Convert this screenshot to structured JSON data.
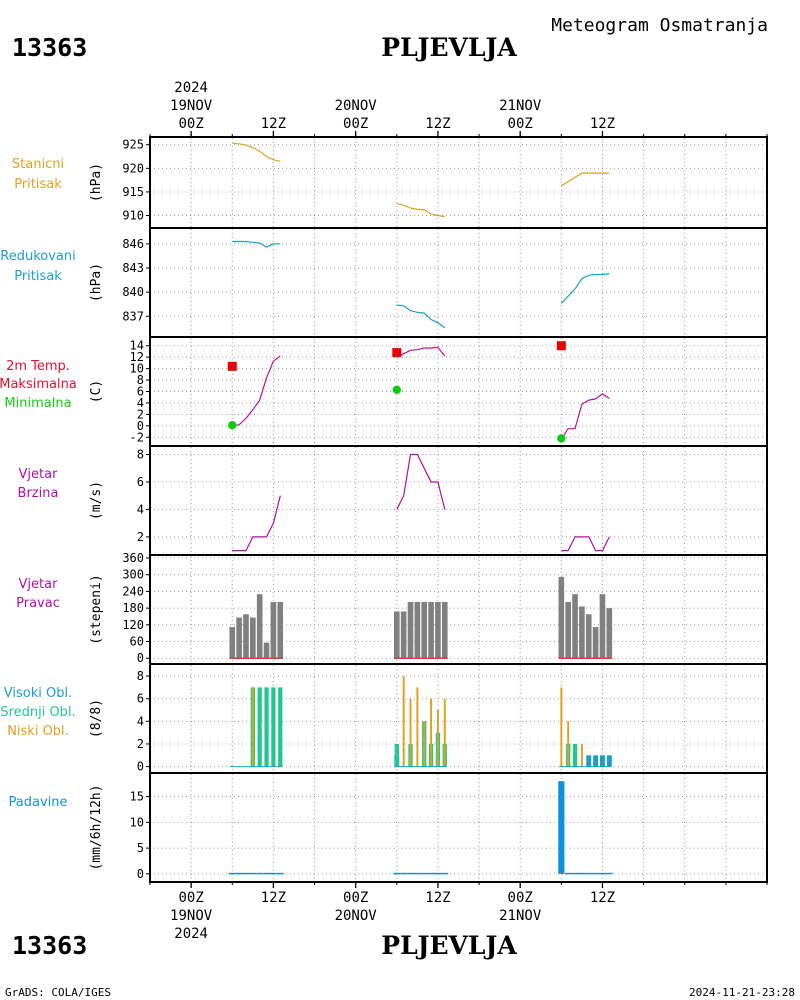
{
  "header": {
    "station_id": "13363",
    "station_name": "PLJEVLJA",
    "meteogram_title": "Meteogram Osmatranja"
  },
  "footer": {
    "left_text": "GrADS: COLA/IGES",
    "timestamp": "2024-11-21-23:28"
  },
  "time_axis": {
    "unit": "hours since 2024-11-19 00Z",
    "xlim": [
      -6,
      84
    ],
    "year_label": "2024",
    "top_ticks": [
      {
        "hour": 0,
        "label": "00Z"
      },
      {
        "hour": 12,
        "label": "12Z"
      },
      {
        "hour": 24,
        "label": "00Z"
      },
      {
        "hour": 36,
        "label": "12Z"
      },
      {
        "hour": 48,
        "label": "00Z"
      },
      {
        "hour": 60,
        "label": "12Z"
      }
    ],
    "date_labels": [
      {
        "hour": 0,
        "label": "19NOV"
      },
      {
        "hour": 24,
        "label": "20NOV"
      },
      {
        "hour": 48,
        "label": "21NOV"
      }
    ]
  },
  "colors": {
    "pressure": "#e0a020",
    "reduced_pressure": "#1aa0c8",
    "temp_label": "#e01030",
    "max_marker": "#e80000",
    "min_marker": "#10cc10",
    "temp_line": "#c01098",
    "wind": "#aa10aa",
    "wind_bar": "#808080",
    "wind_baseline": "#d04040",
    "cloud_high": "#1aa0c8",
    "cloud_mid": "#20c890",
    "cloud_low": "#e0a020",
    "precip": "#1090e0"
  },
  "chart_data": [
    {
      "panel": "station_pressure",
      "type": "line",
      "label_lines": [
        "Stanicni",
        "Pritisak"
      ],
      "ylabel": "(hPa)",
      "ylim": [
        908,
        926
      ],
      "yticks": [
        910,
        915,
        920,
        925
      ],
      "series": [
        {
          "segments": [
            [
              [
                6,
                925.3
              ],
              [
                7,
                925.2
              ],
              [
                8,
                924.9
              ],
              [
                9,
                924.4
              ],
              [
                10,
                923.6
              ],
              [
                11,
                922.5
              ],
              [
                12,
                921.8
              ],
              [
                13,
                921.5
              ]
            ],
            [
              [
                30,
                912.5
              ],
              [
                31,
                912.2
              ],
              [
                32,
                911.6
              ],
              [
                33,
                911.3
              ],
              [
                34,
                911.2
              ],
              [
                35,
                910.3
              ],
              [
                36,
                910.0
              ],
              [
                37,
                909.8
              ]
            ],
            [
              [
                54,
                916.3
              ],
              [
                55,
                917.2
              ],
              [
                56,
                918.1
              ],
              [
                57,
                919.0
              ],
              [
                58,
                919.0
              ],
              [
                59,
                919.0
              ],
              [
                60,
                919.0
              ],
              [
                61,
                919.0
              ]
            ]
          ]
        }
      ]
    },
    {
      "panel": "reduced_pressure",
      "type": "line",
      "label_lines": [
        "Redukovani",
        "Pritisak"
      ],
      "ylabel": "(hPa)",
      "ylim": [
        834.8,
        847.6
      ],
      "yticks": [
        837,
        840,
        843,
        846
      ],
      "series": [
        {
          "segments": [
            [
              [
                6,
                846.3
              ],
              [
                7,
                846.3
              ],
              [
                8,
                846.3
              ],
              [
                9,
                846.2
              ],
              [
                10,
                846.1
              ],
              [
                11,
                845.6
              ],
              [
                12,
                846.0
              ],
              [
                13,
                846.0
              ]
            ],
            [
              [
                30,
                838.4
              ],
              [
                31,
                838.3
              ],
              [
                32,
                837.7
              ],
              [
                33,
                837.5
              ],
              [
                34,
                837.4
              ],
              [
                35,
                836.6
              ],
              [
                36,
                836.2
              ],
              [
                37,
                835.6
              ]
            ],
            [
              [
                54,
                838.6
              ],
              [
                55,
                839.5
              ],
              [
                56,
                840.4
              ],
              [
                57,
                841.7
              ],
              [
                58,
                842.1
              ],
              [
                59,
                842.2
              ],
              [
                60,
                842.2
              ],
              [
                61,
                842.3
              ]
            ]
          ]
        }
      ]
    },
    {
      "panel": "temperature_2m",
      "type": "line",
      "label_lines": [
        "2m Temp.",
        "Maksimalna",
        "Minimalna"
      ],
      "ylabel": "(C)",
      "ylim": [
        -3,
        15
      ],
      "yticks": [
        -2,
        0,
        2,
        4,
        6,
        8,
        10,
        12,
        14
      ],
      "series": [
        {
          "name": "2m Temp.",
          "segments": [
            [
              [
                6,
                0.0
              ],
              [
                7,
                0.2
              ],
              [
                8,
                1.3
              ],
              [
                9,
                2.8
              ],
              [
                10,
                4.5
              ],
              [
                11,
                8.4
              ],
              [
                12,
                11.3
              ],
              [
                13,
                12.2
              ]
            ],
            [
              [
                30,
                12.0
              ],
              [
                31,
                12.6
              ],
              [
                32,
                13.2
              ],
              [
                33,
                13.3
              ],
              [
                34,
                13.6
              ],
              [
                35,
                13.6
              ],
              [
                36,
                13.7
              ],
              [
                37,
                12.2
              ]
            ],
            [
              [
                54,
                -2.3
              ],
              [
                55,
                -0.5
              ],
              [
                56,
                -0.5
              ],
              [
                57,
                3.8
              ],
              [
                58,
                4.5
              ],
              [
                59,
                4.7
              ],
              [
                60,
                5.6
              ],
              [
                61,
                4.8
              ]
            ]
          ]
        },
        {
          "name": "Maksimalna",
          "points": [
            [
              6,
              10.4
            ],
            [
              30,
              12.8
            ],
            [
              54,
              14.0
            ]
          ]
        },
        {
          "name": "Minimalna",
          "points": [
            [
              6,
              0.1
            ],
            [
              30,
              6.3
            ],
            [
              54,
              -2.2
            ]
          ]
        }
      ]
    },
    {
      "panel": "wind_speed",
      "type": "line",
      "label_lines": [
        "Vjetar",
        "Brzina"
      ],
      "ylabel": "(m/s)",
      "ylim": [
        0.9,
        8.4
      ],
      "yticks": [
        2,
        4,
        6,
        8
      ],
      "series": [
        {
          "segments": [
            [
              [
                6,
                1.0
              ],
              [
                7,
                1.0
              ],
              [
                8,
                1.0
              ],
              [
                9,
                2.0
              ],
              [
                10,
                2.0
              ],
              [
                11,
                2.0
              ],
              [
                12,
                3.0
              ],
              [
                13,
                5.0
              ]
            ],
            [
              [
                30,
                4.0
              ],
              [
                31,
                5.0
              ],
              [
                32,
                8.0
              ],
              [
                33,
                8.0
              ],
              [
                34,
                7.0
              ],
              [
                35,
                6.0
              ],
              [
                36,
                6.0
              ],
              [
                37,
                4.0
              ]
            ],
            [
              [
                54,
                1.0
              ],
              [
                55,
                1.0
              ],
              [
                56,
                2.0
              ],
              [
                57,
                2.0
              ],
              [
                58,
                2.0
              ],
              [
                59,
                1.0
              ],
              [
                60,
                1.0
              ],
              [
                61,
                2.0
              ]
            ]
          ]
        }
      ]
    },
    {
      "panel": "wind_direction",
      "type": "bar",
      "label_lines": [
        "Vjetar",
        "Pravac"
      ],
      "ylabel": "(stepeni)",
      "ylim": [
        -10,
        360
      ],
      "yticks": [
        0,
        60,
        120,
        180,
        240,
        300,
        360
      ],
      "hours": [
        6,
        7,
        8,
        9,
        10,
        11,
        12,
        13,
        30,
        31,
        32,
        33,
        34,
        35,
        36,
        37,
        54,
        55,
        56,
        57,
        58,
        59,
        60,
        61
      ],
      "values": [
        112,
        146,
        158,
        146,
        230,
        56,
        202,
        202,
        168,
        168,
        202,
        202,
        202,
        202,
        202,
        202,
        292,
        202,
        230,
        186,
        158,
        112,
        230,
        180
      ]
    },
    {
      "panel": "cloud_cover",
      "type": "bar",
      "label_lines": [
        "Visoki Obl.",
        "Srednji Obl.",
        "Niski Obl."
      ],
      "ylabel": "(8/8)",
      "ylim": [
        -0.3,
        8.8
      ],
      "yticks": [
        0,
        2,
        4,
        6,
        8
      ],
      "hours": [
        6,
        7,
        8,
        9,
        10,
        11,
        12,
        13,
        30,
        31,
        32,
        33,
        34,
        35,
        36,
        37,
        54,
        55,
        56,
        57,
        58,
        59,
        60,
        61
      ],
      "series": [
        {
          "name": "Visoki Obl.",
          "values": [
            0,
            0,
            0,
            0,
            0,
            0,
            0,
            0,
            1,
            0,
            0,
            0,
            0,
            0,
            0,
            0,
            0,
            0,
            0,
            0,
            1,
            1,
            1,
            1
          ]
        },
        {
          "name": "Srednji Obl.",
          "values": [
            0,
            0,
            0,
            7,
            7,
            7,
            7,
            7,
            2,
            0,
            2,
            0,
            4,
            2,
            3,
            2,
            0,
            2,
            2,
            0,
            0,
            0,
            0,
            0
          ]
        },
        {
          "name": "Niski Obl.",
          "values": [
            0,
            0,
            0,
            7,
            0,
            0,
            0,
            0,
            0,
            8,
            6,
            7,
            4,
            6,
            5,
            6,
            7,
            4,
            0,
            2,
            0,
            0,
            0,
            0
          ]
        }
      ]
    },
    {
      "panel": "precipitation",
      "type": "bar",
      "label_lines": [
        "Padavine"
      ],
      "ylabel": "(mm/6h/12h)",
      "ylim": [
        -1,
        19
      ],
      "yticks": [
        0,
        5,
        10,
        15
      ],
      "hours": [
        6,
        7,
        8,
        9,
        10,
        11,
        12,
        13,
        30,
        31,
        32,
        33,
        34,
        35,
        36,
        37,
        54,
        55,
        56,
        57,
        58,
        59,
        60,
        61
      ],
      "values": [
        0.2,
        0.2,
        0.2,
        0.2,
        0.2,
        0.2,
        0.2,
        0.2,
        0.2,
        0.2,
        0.2,
        0.2,
        0.2,
        0.2,
        0.2,
        0.2,
        18.0,
        0.2,
        0.2,
        0.2,
        0.2,
        0.2,
        0.2,
        0.2
      ]
    }
  ]
}
